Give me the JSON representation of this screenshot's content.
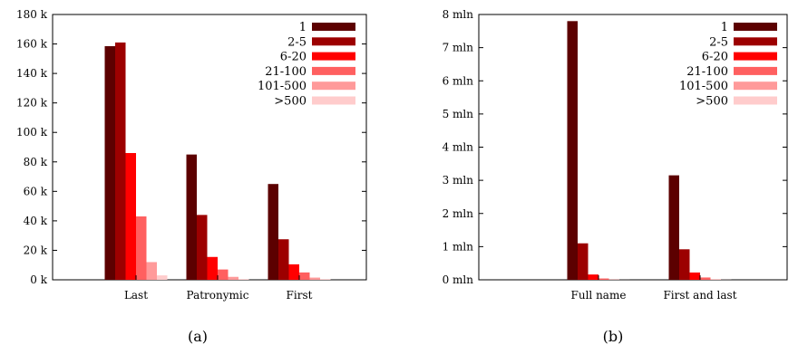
{
  "chart_data": [
    {
      "type": "bar",
      "caption": "(a)",
      "categories": [
        "Last",
        "Patronymic",
        "First"
      ],
      "y_tick_labels": [
        "0 k",
        "20 k",
        "40 k",
        "60 k",
        "80 k",
        "100 k",
        "120 k",
        "140 k",
        "160 k",
        "180 k"
      ],
      "ylim": [
        0,
        180000
      ],
      "legend_position": "top-right",
      "series": [
        {
          "name": "1",
          "color": "#5c0000",
          "values": [
            158500,
            85000,
            65000
          ]
        },
        {
          "name": "2-5",
          "color": "#9c0000",
          "values": [
            161000,
            44000,
            27500
          ]
        },
        {
          "name": "6-20",
          "color": "#ff0000",
          "values": [
            86000,
            15500,
            10500
          ]
        },
        {
          "name": "21-100",
          "color": "#ff6060",
          "values": [
            43000,
            7000,
            5000
          ]
        },
        {
          "name": "101-500",
          "color": "#ff9a9a",
          "values": [
            12000,
            2000,
            1500
          ]
        },
        {
          "name": ">500",
          "color": "#ffcccc",
          "values": [
            3000,
            500,
            500
          ]
        }
      ]
    },
    {
      "type": "bar",
      "caption": "(b)",
      "categories": [
        "Full name",
        "First and last"
      ],
      "y_tick_labels": [
        "0 mln",
        "1 mln",
        "2 mln",
        "3 mln",
        "4 mln",
        "5 mln",
        "6 mln",
        "7 mln",
        "8 mln"
      ],
      "ylim": [
        0,
        8000000
      ],
      "legend_position": "top-right",
      "series": [
        {
          "name": "1",
          "color": "#5c0000",
          "values": [
            7800000,
            3150000
          ]
        },
        {
          "name": "2-5",
          "color": "#9c0000",
          "values": [
            1100000,
            920000
          ]
        },
        {
          "name": "6-20",
          "color": "#ff0000",
          "values": [
            160000,
            220000
          ]
        },
        {
          "name": "21-100",
          "color": "#ff6060",
          "values": [
            40000,
            70000
          ]
        },
        {
          "name": "101-500",
          "color": "#ff9a9a",
          "values": [
            10000,
            15000
          ]
        },
        {
          "name": ">500",
          "color": "#ffcccc",
          "values": [
            2000,
            4000
          ]
        }
      ]
    }
  ]
}
